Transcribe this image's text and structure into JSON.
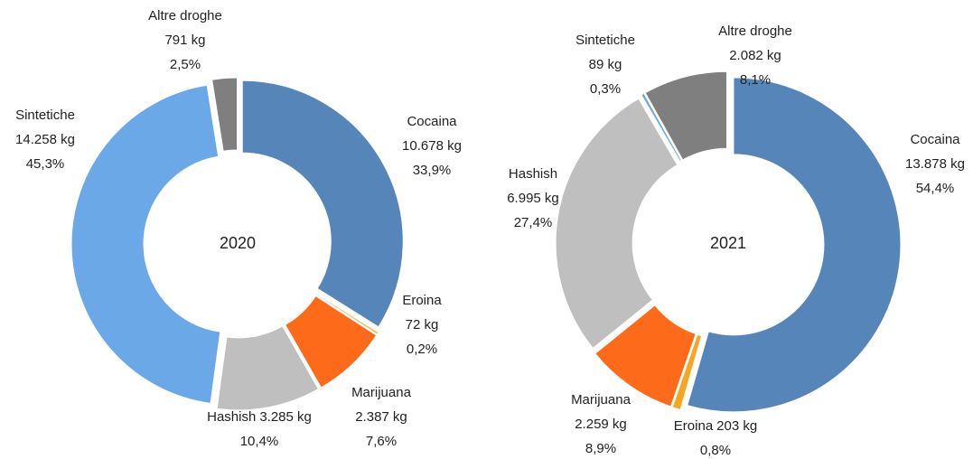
{
  "chart_data": [
    {
      "type": "donut",
      "center_label": "2020",
      "categories": [
        "Cocaina",
        "Eroina",
        "Marijuana",
        "Hashish",
        "Sintetiche",
        "Altre droghe"
      ],
      "values": [
        33.9,
        0.2,
        7.6,
        10.4,
        45.3,
        2.5
      ],
      "value_labels": [
        "33,9%",
        "0,2%",
        "7,6%",
        "10,4%",
        "45,3%",
        "2,5%"
      ],
      "weights": [
        10678,
        72,
        2387,
        3285,
        14258,
        791
      ],
      "weight_labels": [
        "10.678 kg",
        "72 kg",
        "2.387 kg",
        "3.285 kg",
        "14.258 kg",
        "791 kg"
      ],
      "colors": [
        "#5585b9",
        "#f5a623",
        "#fd6a19",
        "#bfbfbf",
        "#6aa8e8",
        "#7f7f7f"
      ]
    },
    {
      "type": "donut",
      "center_label": "2021",
      "categories": [
        "Cocaina",
        "Eroina",
        "Marijuana",
        "Hashish",
        "Sintetiche",
        "Altre droghe"
      ],
      "values": [
        54.4,
        0.8,
        8.9,
        27.4,
        0.3,
        8.1
      ],
      "value_labels": [
        "54,4%",
        "0,8%",
        "8,9%",
        "27,4%",
        "0,3%",
        "8,1%"
      ],
      "weights": [
        13878,
        203,
        2259,
        6995,
        89,
        2082
      ],
      "weight_labels": [
        "13.878 kg",
        "203 kg",
        "2.259 kg",
        "6.995 kg",
        "89 kg",
        "2.082 kg"
      ],
      "colors": [
        "#5585b9",
        "#f5a623",
        "#fd6a19",
        "#bfbfbf",
        "#6aa8e8",
        "#7f7f7f"
      ]
    }
  ]
}
